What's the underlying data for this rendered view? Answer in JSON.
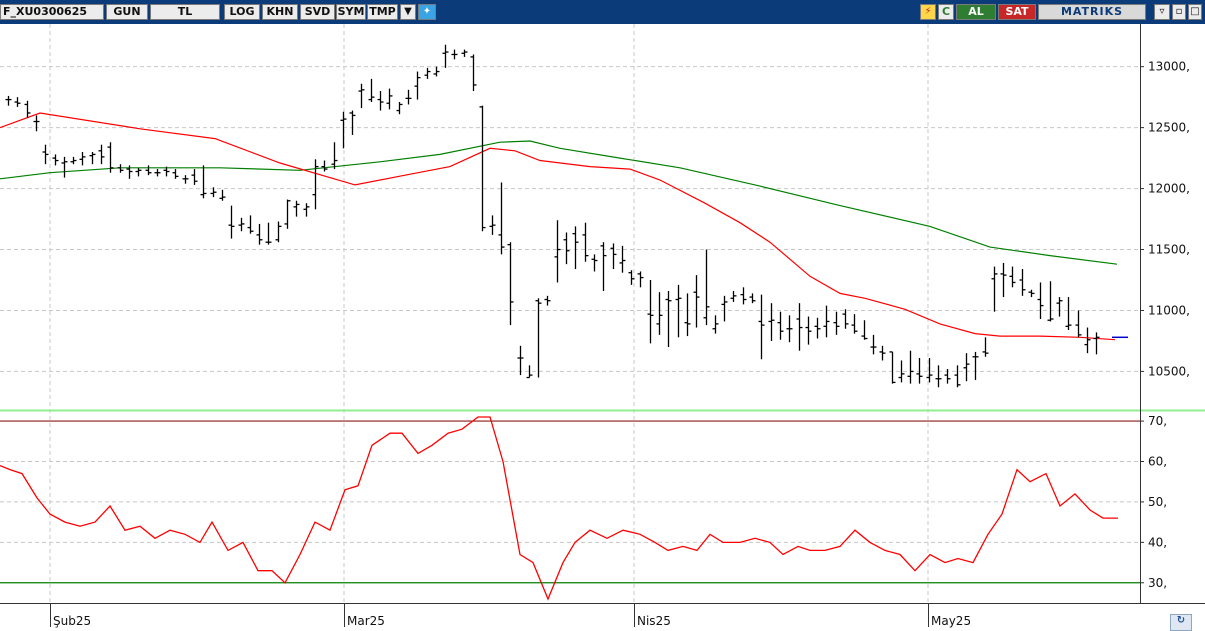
{
  "toolbar": {
    "symbol": "F_XU0300625",
    "period": "GUN",
    "currency": "TL",
    "buttons": [
      "LOG",
      "KHN",
      "SVD",
      "SYM",
      "TMP"
    ],
    "dropdown_icon": "triangle-down-icon",
    "bird_icon": "twitter-bird-icon",
    "lightning_icon": "lightning-icon",
    "c_label": "C",
    "buy_label": "AL",
    "sell_label": "SAT",
    "brand": "MATRIKS",
    "window_icons": [
      "minimize-icon",
      "restore-icon",
      "close-icon"
    ]
  },
  "colors": {
    "toolbar_bg": "#0b3b79",
    "price_bars": "#000000",
    "ma_short": "#ff0000",
    "ma_long": "#008000",
    "rsi_line": "#ff0000",
    "rsi_upper": "#8b1a1a",
    "rsi_lower": "#008000",
    "buy_bg": "#2e7d32",
    "sell_bg": "#c62828",
    "panel_divider": "#90ee90",
    "current_price_marker": "#0000cc"
  },
  "chart_data": [
    {
      "type": "ohlc",
      "xlabels": [
        "Şub25",
        "Mar25",
        "Nis25",
        "May25"
      ],
      "ylabels": [
        "13000,",
        "12500,",
        "12000,",
        "11500,",
        "11000,",
        "10500,"
      ],
      "yticks": [
        13000,
        12500,
        12000,
        11500,
        11000,
        10500
      ],
      "ylim": [
        10200,
        13350
      ],
      "grid": true,
      "bars": [
        [
          12730,
          12760,
          12680,
          12730
        ],
        [
          12710,
          12750,
          12670,
          12700
        ],
        [
          12690,
          12720,
          12580,
          12620
        ],
        [
          12550,
          12600,
          12470,
          12550
        ],
        [
          12300,
          12360,
          12200,
          12280
        ],
        [
          12250,
          12280,
          12190,
          12230
        ],
        [
          12210,
          12260,
          12090,
          12220
        ],
        [
          12220,
          12260,
          12200,
          12230
        ],
        [
          12240,
          12300,
          12190,
          12260
        ],
        [
          12270,
          12300,
          12200,
          12280
        ],
        [
          12310,
          12360,
          12200,
          12260
        ],
        [
          12340,
          12380,
          12130,
          12170
        ],
        [
          12170,
          12200,
          12130,
          12150
        ],
        [
          12160,
          12190,
          12080,
          12140
        ],
        [
          12140,
          12170,
          12100,
          12150
        ],
        [
          12150,
          12190,
          12110,
          12130
        ],
        [
          12130,
          12160,
          12100,
          12130
        ],
        [
          12150,
          12180,
          12100,
          12140
        ],
        [
          12130,
          12160,
          12080,
          12100
        ],
        [
          12080,
          12110,
          12040,
          12080
        ],
        [
          12110,
          12160,
          12030,
          12060
        ],
        [
          11950,
          12190,
          11920,
          11960
        ],
        [
          11960,
          12010,
          11930,
          11970
        ],
        [
          11920,
          11990,
          11900,
          11930
        ],
        [
          11700,
          11860,
          11590,
          11690
        ],
        [
          11700,
          11760,
          11650,
          11710
        ],
        [
          11680,
          11780,
          11630,
          11650
        ],
        [
          11620,
          11710,
          11540,
          11580
        ],
        [
          11560,
          11720,
          11540,
          11560
        ],
        [
          11580,
          11730,
          11560,
          11690
        ],
        [
          11710,
          11910,
          11670,
          11900
        ],
        [
          11850,
          11900,
          11770,
          11870
        ],
        [
          11830,
          11880,
          11770,
          11850
        ],
        [
          11950,
          12240,
          11830,
          12180
        ],
        [
          12180,
          12230,
          12140,
          12160
        ],
        [
          12200,
          12380,
          12160,
          12230
        ],
        [
          12560,
          12630,
          12330,
          12570
        ],
        [
          12620,
          12640,
          12440,
          12600
        ],
        [
          12800,
          12860,
          12660,
          12810
        ],
        [
          12730,
          12900,
          12710,
          12750
        ],
        [
          12730,
          12800,
          12640,
          12710
        ],
        [
          12700,
          12820,
          12650,
          12760
        ],
        [
          12640,
          12710,
          12610,
          12690
        ],
        [
          12740,
          12810,
          12690,
          12740
        ],
        [
          12840,
          12960,
          12730,
          12910
        ],
        [
          12930,
          12990,
          12900,
          12960
        ],
        [
          12940,
          13000,
          12920,
          12960
        ],
        [
          13110,
          13180,
          12990,
          13120
        ],
        [
          13100,
          13140,
          13060,
          13100
        ],
        [
          13110,
          13140,
          13080,
          13120
        ],
        [
          13080,
          13100,
          12800,
          12850
        ],
        [
          12670,
          12680,
          11650,
          11680
        ],
        [
          11690,
          11780,
          11620,
          11700
        ],
        [
          11620,
          12050,
          11460,
          11520
        ],
        [
          11540,
          11560,
          10880,
          11070
        ],
        [
          10610,
          10710,
          10470,
          10610
        ],
        [
          10450,
          10550,
          10450,
          10470
        ],
        [
          11080,
          11100,
          10450,
          11060
        ],
        [
          11090,
          11120,
          11040,
          11080
        ],
        [
          11440,
          11740,
          11230,
          11500
        ],
        [
          11580,
          11640,
          11380,
          11490
        ],
        [
          11630,
          11690,
          11340,
          11560
        ],
        [
          11620,
          11720,
          11400,
          11450
        ],
        [
          11420,
          11460,
          11320,
          11410
        ],
        [
          11530,
          11560,
          11160,
          11450
        ],
        [
          11510,
          11550,
          11340,
          11460
        ],
        [
          11390,
          11530,
          11310,
          11410
        ],
        [
          11310,
          11330,
          11210,
          11260
        ],
        [
          11300,
          11320,
          11190,
          11270
        ],
        [
          10970,
          11250,
          10730,
          10960
        ],
        [
          10890,
          11150,
          10800,
          10960
        ],
        [
          11090,
          11160,
          10700,
          11080
        ],
        [
          11090,
          11210,
          10780,
          11100
        ],
        [
          10900,
          11140,
          10790,
          10890
        ],
        [
          11150,
          11290,
          10860,
          11110
        ],
        [
          10940,
          11500,
          10880,
          11030
        ],
        [
          10850,
          10960,
          10810,
          10890
        ],
        [
          11050,
          11120,
          10910,
          11070
        ],
        [
          11100,
          11160,
          11070,
          11120
        ],
        [
          11130,
          11190,
          11050,
          11090
        ],
        [
          11110,
          11140,
          11060,
          11080
        ],
        [
          10910,
          11130,
          10600,
          10880
        ],
        [
          10910,
          11060,
          10750,
          10920
        ],
        [
          10900,
          10990,
          10760,
          10830
        ],
        [
          10850,
          10960,
          10740,
          10850
        ],
        [
          10930,
          11060,
          10670,
          10860
        ],
        [
          10860,
          10950,
          10720,
          10830
        ],
        [
          10870,
          10940,
          10770,
          10850
        ],
        [
          10870,
          11040,
          10780,
          10910
        ],
        [
          10900,
          10990,
          10800,
          10870
        ],
        [
          10970,
          11010,
          10850,
          10890
        ],
        [
          10880,
          10970,
          10810,
          10830
        ],
        [
          10790,
          10920,
          10760,
          10770
        ],
        [
          10700,
          10800,
          10640,
          10700
        ],
        [
          10660,
          10710,
          10590,
          10650
        ],
        [
          10660,
          10660,
          10400,
          10410
        ],
        [
          10450,
          10590,
          10410,
          10480
        ],
        [
          10460,
          10670,
          10400,
          10500
        ],
        [
          10480,
          10610,
          10400,
          10460
        ],
        [
          10450,
          10610,
          10410,
          10470
        ],
        [
          10440,
          10550,
          10370,
          10440
        ],
        [
          10470,
          10520,
          10400,
          10440
        ],
        [
          10470,
          10550,
          10370,
          10390
        ],
        [
          10530,
          10650,
          10420,
          10560
        ],
        [
          10620,
          10660,
          10430,
          10620
        ],
        [
          10660,
          10780,
          10620,
          10650
        ],
        [
          11260,
          11360,
          10990,
          11300
        ],
        [
          11300,
          11390,
          11110,
          11290
        ],
        [
          11280,
          11360,
          11190,
          11230
        ],
        [
          11250,
          11340,
          11120,
          11170
        ],
        [
          11150,
          11170,
          11110,
          11140
        ],
        [
          11090,
          11230,
          10930,
          11040
        ],
        [
          10920,
          11240,
          10910,
          10930
        ],
        [
          11060,
          11110,
          10950,
          11080
        ],
        [
          10870,
          11110,
          10840,
          10880
        ],
        [
          10880,
          11000,
          10780,
          10800
        ],
        [
          10720,
          10860,
          10650,
          10760
        ],
        [
          10770,
          10820,
          10640,
          10780
        ]
      ],
      "ma_short": [
        [
          0,
          12500
        ],
        [
          40,
          12620
        ],
        [
          140,
          12490
        ],
        [
          215,
          12410
        ],
        [
          280,
          12210
        ],
        [
          355,
          12030
        ],
        [
          405,
          12110
        ],
        [
          450,
          12180
        ],
        [
          490,
          12330
        ],
        [
          515,
          12310
        ],
        [
          540,
          12230
        ],
        [
          590,
          12180
        ],
        [
          630,
          12160
        ],
        [
          660,
          12070
        ],
        [
          705,
          11880
        ],
        [
          740,
          11720
        ],
        [
          770,
          11560
        ],
        [
          810,
          11280
        ],
        [
          840,
          11140
        ],
        [
          865,
          11100
        ],
        [
          905,
          11010
        ],
        [
          940,
          10890
        ],
        [
          975,
          10810
        ],
        [
          1000,
          10790
        ],
        [
          1040,
          10790
        ],
        [
          1080,
          10780
        ],
        [
          1115,
          10760
        ]
      ],
      "ma_long": [
        [
          0,
          12080
        ],
        [
          50,
          12130
        ],
        [
          120,
          12170
        ],
        [
          220,
          12170
        ],
        [
          300,
          12150
        ],
        [
          380,
          12220
        ],
        [
          440,
          12280
        ],
        [
          500,
          12380
        ],
        [
          530,
          12390
        ],
        [
          560,
          12330
        ],
        [
          620,
          12250
        ],
        [
          680,
          12170
        ],
        [
          760,
          12020
        ],
        [
          840,
          11860
        ],
        [
          930,
          11690
        ],
        [
          990,
          11520
        ],
        [
          1050,
          11450
        ],
        [
          1117,
          11380
        ]
      ],
      "current_price": 10780
    },
    {
      "type": "line",
      "ylabels": [
        "70,",
        "60,",
        "50,",
        "40,",
        "30,"
      ],
      "yticks": [
        70,
        60,
        50,
        40,
        30
      ],
      "ylim": [
        25,
        72
      ],
      "levels": [
        70,
        30
      ],
      "values": [
        [
          0,
          59
        ],
        [
          10,
          58
        ],
        [
          22,
          57
        ],
        [
          37,
          51
        ],
        [
          50,
          47
        ],
        [
          65,
          45
        ],
        [
          80,
          44
        ],
        [
          95,
          45
        ],
        [
          110,
          49
        ],
        [
          125,
          43
        ],
        [
          140,
          44
        ],
        [
          155,
          41
        ],
        [
          170,
          43
        ],
        [
          185,
          42
        ],
        [
          200,
          40
        ],
        [
          212,
          45
        ],
        [
          228,
          38
        ],
        [
          243,
          40
        ],
        [
          258,
          33
        ],
        [
          272,
          33
        ],
        [
          285,
          30
        ],
        [
          300,
          37
        ],
        [
          315,
          45
        ],
        [
          330,
          43
        ],
        [
          345,
          53
        ],
        [
          358,
          54
        ],
        [
          372,
          64
        ],
        [
          390,
          67
        ],
        [
          402,
          67
        ],
        [
          418,
          62
        ],
        [
          432,
          64
        ],
        [
          448,
          67
        ],
        [
          462,
          68
        ],
        [
          478,
          71
        ],
        [
          490,
          71
        ],
        [
          503,
          60
        ],
        [
          520,
          37
        ],
        [
          533,
          35
        ],
        [
          548,
          26
        ],
        [
          563,
          35
        ],
        [
          575,
          40
        ],
        [
          590,
          43
        ],
        [
          607,
          41
        ],
        [
          623,
          43
        ],
        [
          640,
          42
        ],
        [
          655,
          40
        ],
        [
          668,
          38
        ],
        [
          683,
          39
        ],
        [
          697,
          38
        ],
        [
          710,
          42
        ],
        [
          723,
          40
        ],
        [
          740,
          40
        ],
        [
          755,
          41
        ],
        [
          770,
          40
        ],
        [
          783,
          37
        ],
        [
          798,
          39
        ],
        [
          810,
          38
        ],
        [
          825,
          38
        ],
        [
          840,
          39
        ],
        [
          855,
          43
        ],
        [
          870,
          40
        ],
        [
          885,
          38
        ],
        [
          900,
          37
        ],
        [
          915,
          33
        ],
        [
          930,
          37
        ],
        [
          945,
          35
        ],
        [
          958,
          36
        ],
        [
          973,
          35
        ],
        [
          988,
          42
        ],
        [
          1002,
          47
        ],
        [
          1017,
          58
        ],
        [
          1030,
          55
        ],
        [
          1046,
          57
        ],
        [
          1060,
          49
        ],
        [
          1075,
          52
        ],
        [
          1090,
          48
        ],
        [
          1103,
          46
        ],
        [
          1118,
          46
        ]
      ]
    }
  ]
}
